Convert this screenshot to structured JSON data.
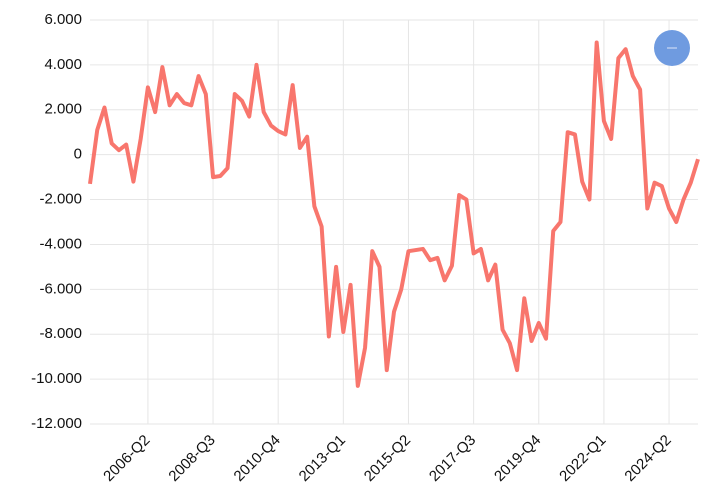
{
  "chart_data": {
    "type": "line",
    "color": "#f8766d",
    "grid": true,
    "categories": [
      null,
      null,
      null,
      null,
      null,
      null,
      null,
      null,
      "2006-Q2",
      null,
      null,
      null,
      null,
      null,
      null,
      null,
      null,
      "2008-Q3",
      null,
      null,
      null,
      null,
      null,
      null,
      null,
      null,
      "2010-Q4",
      null,
      null,
      null,
      null,
      null,
      null,
      null,
      null,
      "2013-Q1",
      null,
      null,
      null,
      null,
      null,
      null,
      null,
      null,
      "2015-Q2",
      null,
      null,
      null,
      null,
      null,
      null,
      null,
      null,
      "2017-Q3",
      null,
      null,
      null,
      null,
      null,
      null,
      null,
      null,
      "2019-Q4",
      null,
      null,
      null,
      null,
      null,
      null,
      null,
      null,
      "2022-Q1",
      null,
      null,
      null,
      null,
      null,
      null,
      null,
      null,
      "2024-Q2",
      null,
      null,
      null,
      null
    ],
    "values": [
      -1300,
      1100,
      2100,
      500,
      200,
      450,
      -1200,
      700,
      3000,
      1900,
      3900,
      2200,
      2700,
      2300,
      2200,
      3500,
      2700,
      -1000,
      -950,
      -600,
      2700,
      2400,
      1700,
      4000,
      1900,
      1300,
      1050,
      900,
      3100,
      300,
      800,
      -2300,
      -3200,
      -8100,
      -5000,
      -7900,
      -5800,
      -10300,
      -8600,
      -4300,
      -5000,
      -9600,
      -7000,
      -6000,
      -4300,
      -4250,
      -4200,
      -4700,
      -4600,
      -5600,
      -4950,
      -1800,
      -2000,
      -4400,
      -4200,
      -5600,
      -4900,
      -7800,
      -8400,
      -9600,
      -6400,
      -8300,
      -7500,
      -8200,
      -3400,
      -3000,
      1000,
      900,
      -1200,
      -2000,
      5000,
      1500,
      700,
      4300,
      4700,
      3500,
      2900,
      -2400,
      -1250,
      -1400,
      -2400,
      -3000,
      -2000,
      -1250,
      -200
    ],
    "ylim": [
      -12000,
      6000
    ],
    "yticks": [
      {
        "value": 6000,
        "label": "6.000"
      },
      {
        "value": 4000,
        "label": "4.000"
      },
      {
        "value": 2000,
        "label": "2.000"
      },
      0,
      {
        "value": -2000,
        "label": "-2.000"
      },
      {
        "value": -4000,
        "label": "-4.000"
      },
      {
        "value": -6000,
        "label": "-6.000"
      },
      {
        "value": -8000,
        "label": "-8.000"
      },
      {
        "value": -10000,
        "label": "-10.000"
      },
      {
        "value": -12000,
        "label": "-12.000"
      }
    ]
  }
}
